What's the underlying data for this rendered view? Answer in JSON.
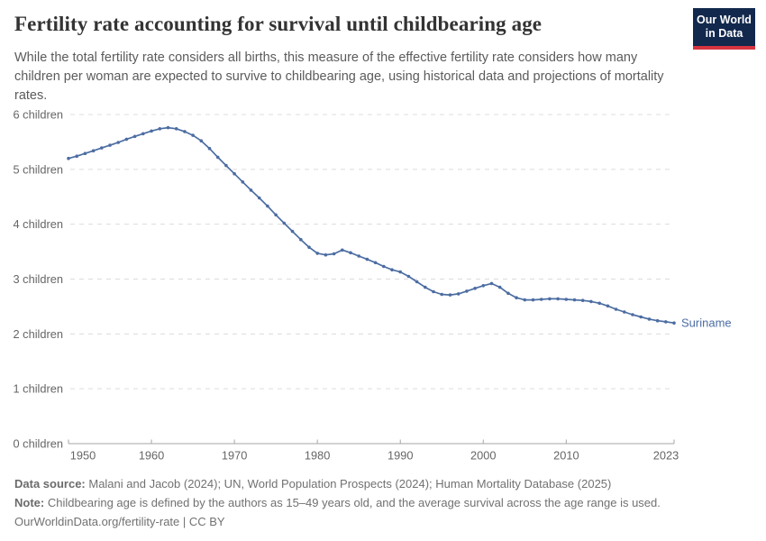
{
  "header": {
    "title": "Fertility rate accounting for survival until childbearing age",
    "subtitle": "While the total fertility rate considers all births, this measure of the effective fertility rate considers how many children per woman are expected to survive to childbearing age, using historical data and projections of mortality rates.",
    "logo": {
      "line1": "Our World",
      "line2": "in Data",
      "bg_color": "#12284d",
      "accent_color": "#d6343f"
    }
  },
  "chart_data": {
    "type": "line",
    "title": "Fertility rate accounting for survival until childbearing age",
    "y_unit_suffix": " children",
    "ylim": [
      0,
      6
    ],
    "xlim": [
      1950,
      2023
    ],
    "grid": "horizontal-dashed",
    "y_ticks": [
      0,
      1,
      2,
      3,
      4,
      5,
      6
    ],
    "x_ticks": [
      1950,
      1960,
      1970,
      1980,
      1990,
      2000,
      2010,
      2023
    ],
    "legend_position": "end-of-line",
    "series": [
      {
        "name": "Suriname",
        "color": "#4c6da2",
        "x": [
          1950,
          1951,
          1952,
          1953,
          1954,
          1955,
          1956,
          1957,
          1958,
          1959,
          1960,
          1961,
          1962,
          1963,
          1964,
          1965,
          1966,
          1967,
          1968,
          1969,
          1970,
          1971,
          1972,
          1973,
          1974,
          1975,
          1976,
          1977,
          1978,
          1979,
          1980,
          1981,
          1982,
          1983,
          1984,
          1985,
          1986,
          1987,
          1988,
          1989,
          1990,
          1991,
          1992,
          1993,
          1994,
          1995,
          1996,
          1997,
          1998,
          1999,
          2000,
          2001,
          2002,
          2003,
          2004,
          2005,
          2006,
          2007,
          2008,
          2009,
          2010,
          2011,
          2012,
          2013,
          2014,
          2015,
          2016,
          2017,
          2018,
          2019,
          2020,
          2021,
          2022,
          2023
        ],
        "values": [
          5.2,
          5.24,
          5.29,
          5.34,
          5.39,
          5.44,
          5.49,
          5.55,
          5.6,
          5.65,
          5.7,
          5.74,
          5.76,
          5.74,
          5.69,
          5.62,
          5.52,
          5.38,
          5.22,
          5.07,
          4.92,
          4.77,
          4.62,
          4.48,
          4.33,
          4.17,
          4.02,
          3.87,
          3.72,
          3.58,
          3.47,
          3.44,
          3.46,
          3.53,
          3.48,
          3.42,
          3.36,
          3.3,
          3.23,
          3.17,
          3.13,
          3.05,
          2.95,
          2.85,
          2.77,
          2.72,
          2.71,
          2.73,
          2.78,
          2.83,
          2.88,
          2.92,
          2.85,
          2.74,
          2.66,
          2.62,
          2.62,
          2.63,
          2.64,
          2.64,
          2.63,
          2.62,
          2.61,
          2.59,
          2.56,
          2.51,
          2.45,
          2.4,
          2.35,
          2.31,
          2.27,
          2.24,
          2.22,
          2.2
        ]
      }
    ],
    "style": {
      "gridline_color": "#dcdcdc",
      "axis_color": "#a6a6a6",
      "tick_label_color": "#666666"
    }
  },
  "footer": {
    "datasource_label": "Data source:",
    "datasource_text": " Malani and Jacob (2024); UN, World Population Prospects (2024); Human Mortality Database (2025)",
    "note_label": "Note:",
    "note_text": " Childbearing age is defined by the authors as 15–49 years old, and the average survival across the age range is used.",
    "url": "OurWorldinData.org/fertility-rate",
    "separator": " | ",
    "license": "CC BY"
  }
}
